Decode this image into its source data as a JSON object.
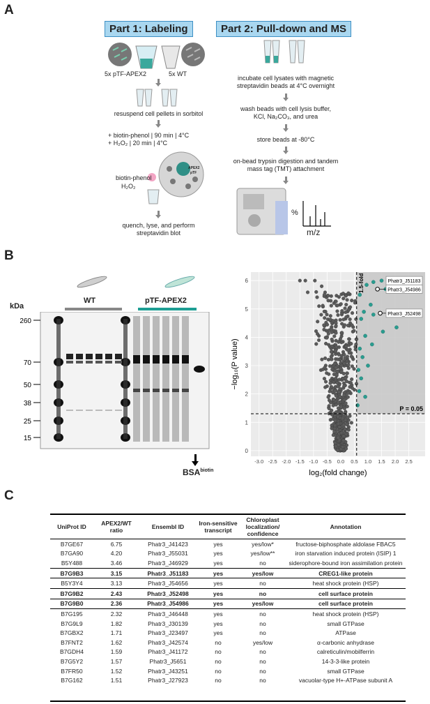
{
  "panels": {
    "a": "A",
    "b": "B",
    "c": "C"
  },
  "part1": {
    "title": "Part 1: Labeling",
    "label_apex": "5x pTF-APEX2",
    "label_wt": "5x WT",
    "step_resuspend": "resuspend cell pellets in sorbitol",
    "step_biotin": "+ biotin-phenol | 90 min | 4°C",
    "step_h2o2": "+ H₂O₂ | 20 min | 4°C",
    "label_biotin_phenol": "biotin-phenol",
    "label_h2o2": "H₂O₂",
    "label_apex2": "APEX2",
    "label_ptf": "pTF",
    "step_quench_1": "quench, lyse, and perform",
    "step_quench_2": "streptavidin blot"
  },
  "part2": {
    "title": "Part 2: Pull-down and MS",
    "step1_a": "incubate cell lysates with magnetic",
    "step1_b": "streptavidin beads at 4°C overnight",
    "step2_a": "wash beads with cell lysis buffer,",
    "step2_b": "KCl, Na₂CO₃, and urea",
    "step3": "store beads at -80°C",
    "step4_a": "on-bead trypsin digestion and tandem",
    "step4_b": "mass tag (TMT) attachment",
    "ms_y": "%",
    "ms_x": "m/z"
  },
  "blot": {
    "kda": "kDa",
    "markers": [
      "260",
      "70",
      "50",
      "38",
      "25",
      "15"
    ],
    "marker_values": [
      260,
      70,
      50,
      38,
      25,
      15
    ],
    "group_wt": "WT",
    "group_apex": "pTF-APEX2",
    "bsa": "BSA",
    "bsa_sup": "biotin",
    "colors": {
      "wt_bar": "#888888",
      "apex_bar": "#1e9e94"
    }
  },
  "chart_data": {
    "type": "scatter",
    "title": "",
    "xlabel": "log₂(fold change)",
    "ylabel": "−log₁₀(P value)",
    "xlim": [
      -3.3,
      3.1
    ],
    "ylim": [
      -0.2,
      6.3
    ],
    "x_ticks": [
      -3.0,
      -2.5,
      -2.0,
      -1.5,
      -1.0,
      -0.5,
      0.0,
      0.5,
      1.0,
      1.5,
      2.0,
      2.5
    ],
    "x_tick_labels": [
      "-3.0",
      "-2.5",
      "-2.0",
      "-1.5",
      "-1.0",
      "-0.5",
      "0.0",
      "0.5",
      "1.0",
      "1.5",
      "2.0",
      "2.5"
    ],
    "y_ticks": [
      0,
      1,
      2,
      3,
      4,
      5,
      6
    ],
    "y_tick_labels": [
      "0",
      "1",
      "2",
      "3",
      "4",
      "5",
      "6"
    ],
    "vline_x": 0.585,
    "vline_label": "1.5-fold",
    "hline_y": 1.301,
    "hline_label": "P = 0.05",
    "grid": true,
    "colors": {
      "background": "#ebebeb",
      "grid": "#ffffff",
      "point": "#5a5a5a",
      "sig_point": "#2a9d8f",
      "sig_region": "#c9c9c9"
    },
    "highlighted": [
      {
        "label": "Phatr3_J51183",
        "x": 1.75,
        "y": 6.0
      },
      {
        "label": "Phatr3_J54986",
        "x": 1.35,
        "y": 5.7
      },
      {
        "label": "Phatr3_J52498",
        "x": 1.45,
        "y": 4.85
      }
    ],
    "significant_points": [
      {
        "x": 2.7,
        "y": 6.0
      },
      {
        "x": 2.3,
        "y": 6.05
      },
      {
        "x": 1.5,
        "y": 6.0
      },
      {
        "x": 1.2,
        "y": 5.95
      },
      {
        "x": 0.95,
        "y": 5.85
      },
      {
        "x": 1.65,
        "y": 5.7
      },
      {
        "x": 0.7,
        "y": 5.5
      },
      {
        "x": 1.1,
        "y": 5.15
      },
      {
        "x": 0.85,
        "y": 4.9
      },
      {
        "x": 2.35,
        "y": 4.9
      },
      {
        "x": 1.2,
        "y": 4.8
      },
      {
        "x": 0.75,
        "y": 4.65
      },
      {
        "x": 2.05,
        "y": 4.35
      },
      {
        "x": 1.55,
        "y": 4.2
      },
      {
        "x": 0.9,
        "y": 4.05
      },
      {
        "x": 1.15,
        "y": 3.75
      },
      {
        "x": 0.7,
        "y": 3.6
      },
      {
        "x": 0.8,
        "y": 3.3
      },
      {
        "x": 1.0,
        "y": 3.0
      },
      {
        "x": 0.65,
        "y": 2.85
      },
      {
        "x": 0.75,
        "y": 2.55
      },
      {
        "x": 0.68,
        "y": 2.1
      },
      {
        "x": 0.9,
        "y": 1.9
      },
      {
        "x": 0.62,
        "y": 1.6
      }
    ],
    "background_points_note": ""
  },
  "table": {
    "headers": [
      "UniProt ID",
      "APEX2/WT ratio",
      "Ensembl ID",
      "Iron-sensitive transcript",
      "Chloroplast localization/ confidence",
      "Annotation"
    ],
    "rows": [
      {
        "uniprot": "B7GE67",
        "ratio": "6.75",
        "ensembl": "Phatr3_J41423",
        "iron": "yes",
        "chloro": "yes/low*",
        "annot": "fructose-biphosphate aldolase FBAC5",
        "bold": false
      },
      {
        "uniprot": "B7GA90",
        "ratio": "4.20",
        "ensembl": "Phatr3_J55031",
        "iron": "yes",
        "chloro": "yes/low**",
        "annot": "iron starvation induced protein (ISIP) 1",
        "bold": false
      },
      {
        "uniprot": "B5Y488",
        "ratio": "3.46",
        "ensembl": "Phatr3_J46929",
        "iron": "yes",
        "chloro": "no",
        "annot": "siderophore-bound iron assimilation protein",
        "bold": false
      },
      {
        "uniprot": "B7G9B3",
        "ratio": "3.15",
        "ensembl": "Phatr3_J51183",
        "iron": "yes",
        "chloro": "yes/low",
        "annot": "CREG1-like protein",
        "bold": true
      },
      {
        "uniprot": "B5Y3Y4",
        "ratio": "3.13",
        "ensembl": "Phatr3_J54656",
        "iron": "yes",
        "chloro": "no",
        "annot": "heat shock protein (HSP)",
        "bold": false
      },
      {
        "uniprot": "B7G9B2",
        "ratio": "2.43",
        "ensembl": "Phatr3_J52498",
        "iron": "yes",
        "chloro": "no",
        "annot": "cell surface protein",
        "bold": true
      },
      {
        "uniprot": "B7G9B0",
        "ratio": "2.36",
        "ensembl": "Phatr3_J54986",
        "iron": "yes",
        "chloro": "yes/low",
        "annot": "cell surface protein",
        "bold": true
      },
      {
        "uniprot": "B7G195",
        "ratio": "2.32",
        "ensembl": "Phatr3_J46448",
        "iron": "yes",
        "chloro": "no",
        "annot": "heat shock protein (HSP)",
        "bold": false
      },
      {
        "uniprot": "B7G9L9",
        "ratio": "1.82",
        "ensembl": "Phatr3_J30139",
        "iron": "yes",
        "chloro": "no",
        "annot": "small GTPase",
        "bold": false
      },
      {
        "uniprot": "B7GBX2",
        "ratio": "1.71",
        "ensembl": "Phatr3_J23497",
        "iron": "yes",
        "chloro": "no",
        "annot": "ATPase",
        "bold": false
      },
      {
        "uniprot": "B7FNT2",
        "ratio": "1.62",
        "ensembl": "Phatr3_J42574",
        "iron": "no",
        "chloro": "yes/low",
        "annot": "α-carbonic anhydrase",
        "bold": false
      },
      {
        "uniprot": "B7GDH4",
        "ratio": "1.59",
        "ensembl": "Phatr3_J41172",
        "iron": "no",
        "chloro": "no",
        "annot": "calreticulin/mobilferrin",
        "bold": false
      },
      {
        "uniprot": "B7G5Y2",
        "ratio": "1.57",
        "ensembl": "Phatr3_J5651",
        "iron": "no",
        "chloro": "no",
        "annot": "14-3-3-like protein",
        "bold": false
      },
      {
        "uniprot": "B7FR50",
        "ratio": "1.52",
        "ensembl": "Phatr3_J43251",
        "iron": "no",
        "chloro": "no",
        "annot": "small GTPase",
        "bold": false
      },
      {
        "uniprot": "B7G162",
        "ratio": "1.51",
        "ensembl": "Phatr3_J27923",
        "iron": "no",
        "chloro": "no",
        "annot": "vacuolar-type H+-ATPase subunit A",
        "bold": false
      }
    ]
  }
}
